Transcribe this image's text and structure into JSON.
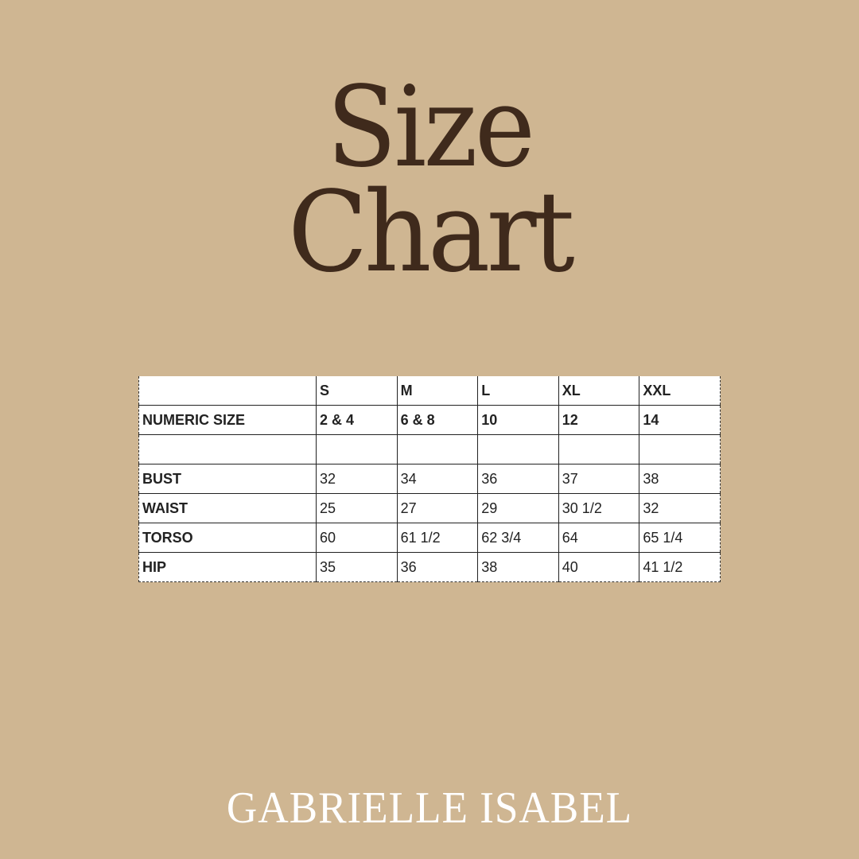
{
  "title": {
    "line1": "Size",
    "line2": "Chart"
  },
  "table": {
    "header": [
      "",
      "S",
      "M",
      "L",
      "XL",
      "XXL"
    ],
    "rows": [
      [
        "NUMERIC SIZE",
        "2 & 4",
        "6 & 8",
        "10",
        "12",
        "14"
      ],
      [
        "",
        "",
        "",
        "",
        "",
        ""
      ],
      [
        "BUST",
        "32",
        "34",
        "36",
        "37",
        "38"
      ],
      [
        "WAIST",
        "25",
        "27",
        "29",
        "30 1/2",
        "32"
      ],
      [
        "TORSO",
        "60",
        "61 1/2",
        "62 3/4",
        "64",
        "65 1/4"
      ],
      [
        "HIP",
        "35",
        "36",
        "38",
        "40",
        "41 1/2"
      ]
    ]
  },
  "brand": "GABRIELLE ISABEL",
  "colors": {
    "background": "#cfb692",
    "title": "#3f2a1c",
    "brand": "#ffffff"
  }
}
